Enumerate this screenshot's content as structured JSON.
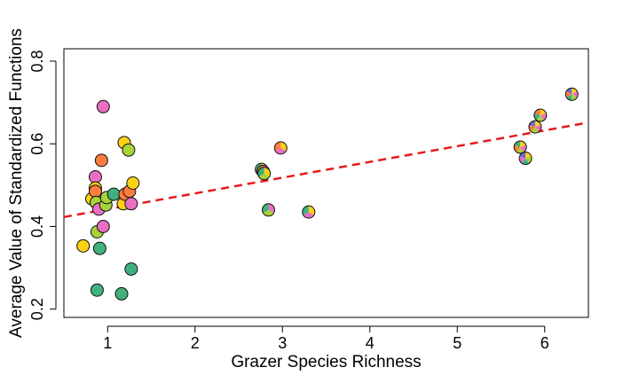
{
  "chart_data": {
    "type": "scatter",
    "title": "",
    "xlabel": "Grazer Species Richness",
    "ylabel": "Average Value of Standardized Functions",
    "xlim": [
      0.5,
      6.5
    ],
    "ylim": [
      0.18,
      0.83
    ],
    "xticks": [
      1,
      2,
      3,
      4,
      5,
      6
    ],
    "yticks": [
      0.2,
      0.4,
      0.6,
      0.8
    ],
    "xtick_labels": [
      "1",
      "2",
      "3",
      "4",
      "5",
      "6"
    ],
    "ytick_labels": [
      "0.2",
      "0.4",
      "0.6",
      "0.8"
    ],
    "grid": false,
    "legend": "none",
    "trendline": {
      "intercept": 0.4038,
      "slope": 0.0381,
      "style": "dashed",
      "color": "#e8191c"
    },
    "palette": [
      "#fcd116",
      "#a6d338",
      "#40b07d",
      "#e86fc1",
      "#fd7d3c",
      "#6b6bd0"
    ],
    "points": [
      {
        "x": 0.72,
        "y": 0.353,
        "colors": [
          "#fcd116"
        ]
      },
      {
        "x": 0.82,
        "y": 0.467,
        "colors": [
          "#fcd116"
        ]
      },
      {
        "x": 0.86,
        "y": 0.52,
        "colors": [
          "#e86fc1"
        ]
      },
      {
        "x": 0.86,
        "y": 0.493,
        "colors": [
          "#fcd116"
        ]
      },
      {
        "x": 0.86,
        "y": 0.485,
        "colors": [
          "#fd7d3c"
        ]
      },
      {
        "x": 0.87,
        "y": 0.458,
        "colors": [
          "#a6d338"
        ]
      },
      {
        "x": 0.88,
        "y": 0.387,
        "colors": [
          "#a6d338"
        ]
      },
      {
        "x": 0.88,
        "y": 0.246,
        "colors": [
          "#40b07d"
        ]
      },
      {
        "x": 0.9,
        "y": 0.442,
        "colors": [
          "#e86fc1"
        ]
      },
      {
        "x": 0.91,
        "y": 0.347,
        "colors": [
          "#40b07d"
        ]
      },
      {
        "x": 0.93,
        "y": 0.56,
        "colors": [
          "#fd7d3c"
        ]
      },
      {
        "x": 0.95,
        "y": 0.69,
        "colors": [
          "#e86fc1"
        ]
      },
      {
        "x": 0.95,
        "y": 0.4,
        "colors": [
          "#e86fc1"
        ]
      },
      {
        "x": 0.98,
        "y": 0.452,
        "colors": [
          "#a6d338"
        ]
      },
      {
        "x": 0.99,
        "y": 0.47,
        "colors": [
          "#a6d338"
        ]
      },
      {
        "x": 1.07,
        "y": 0.478,
        "colors": [
          "#40b07d"
        ]
      },
      {
        "x": 1.16,
        "y": 0.237,
        "colors": [
          "#40b07d"
        ]
      },
      {
        "x": 1.18,
        "y": 0.455,
        "colors": [
          "#fcd116"
        ]
      },
      {
        "x": 1.19,
        "y": 0.603,
        "colors": [
          "#fcd116"
        ]
      },
      {
        "x": 1.2,
        "y": 0.478,
        "colors": [
          "#fd7d3c"
        ]
      },
      {
        "x": 1.24,
        "y": 0.585,
        "colors": [
          "#a6d338"
        ]
      },
      {
        "x": 1.25,
        "y": 0.485,
        "colors": [
          "#fd7d3c"
        ]
      },
      {
        "x": 1.27,
        "y": 0.297,
        "colors": [
          "#40b07d"
        ]
      },
      {
        "x": 1.27,
        "y": 0.455,
        "colors": [
          "#e86fc1"
        ]
      },
      {
        "x": 1.29,
        "y": 0.505,
        "colors": [
          "#fcd116"
        ]
      },
      {
        "x": 2.76,
        "y": 0.538,
        "colors": [
          "#fcd116",
          "#fd7d3c",
          "#40b07d"
        ]
      },
      {
        "x": 2.78,
        "y": 0.533,
        "colors": [
          "#e86fc1",
          "#a6d338",
          "#fd7d3c"
        ]
      },
      {
        "x": 2.79,
        "y": 0.528,
        "colors": [
          "#fcd116",
          "#a6d338",
          "#40b07d"
        ]
      },
      {
        "x": 2.84,
        "y": 0.44,
        "colors": [
          "#e86fc1",
          "#a6d338",
          "#40b07d"
        ]
      },
      {
        "x": 2.98,
        "y": 0.59,
        "colors": [
          "#fcd116",
          "#e86fc1",
          "#fd7d3c"
        ]
      },
      {
        "x": 3.3,
        "y": 0.435,
        "colors": [
          "#fcd116",
          "#e86fc1",
          "#40b07d"
        ]
      },
      {
        "x": 5.72,
        "y": 0.592,
        "colors": [
          "#fcd116",
          "#e86fc1",
          "#a6d338",
          "#fd7d3c",
          "#40b07d"
        ]
      },
      {
        "x": 5.78,
        "y": 0.565,
        "colors": [
          "#fcd116",
          "#a6d338",
          "#40b07d",
          "#e86fc1",
          "#6b6bd0"
        ]
      },
      {
        "x": 5.89,
        "y": 0.641,
        "colors": [
          "#fcd116",
          "#e86fc1",
          "#a6d338",
          "#fd7d3c",
          "#6b6bd0"
        ]
      },
      {
        "x": 5.95,
        "y": 0.669,
        "colors": [
          "#fcd116",
          "#e86fc1",
          "#a6d338",
          "#40b07d",
          "#fd7d3c"
        ]
      },
      {
        "x": 6.31,
        "y": 0.72,
        "colors": [
          "#fcd116",
          "#e86fc1",
          "#a6d338",
          "#40b07d",
          "#fd7d3c",
          "#6b6bd0"
        ]
      }
    ]
  }
}
